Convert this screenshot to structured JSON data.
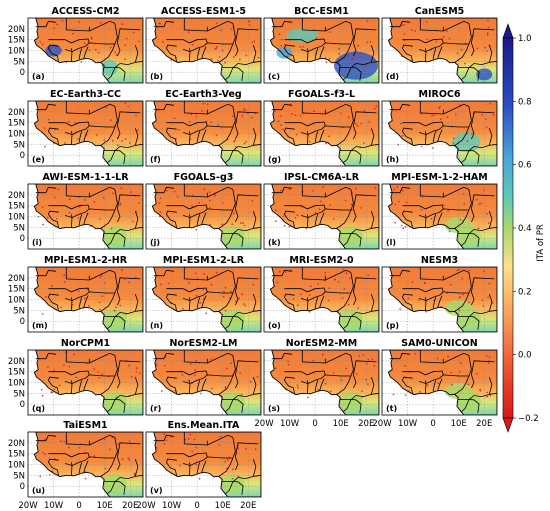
{
  "chart_data": {
    "type": "heatmap",
    "colorbar": {
      "label": "ITA of PR",
      "ticks": [
        "1.0",
        "0.8",
        "0.6",
        "0.4",
        "0.2",
        "0.0",
        "−0.2"
      ],
      "range": [
        -0.2,
        1.0
      ],
      "extend": "both",
      "colors": [
        "#d7191c",
        "#f46d43",
        "#fdae61",
        "#fee08b",
        "#a6d96a",
        "#5ec9b7",
        "#4aa8d8",
        "#2b4fc8",
        "#1a1a8c"
      ]
    },
    "x_ticks": [
      "20W",
      "10W",
      "0",
      "10E",
      "20E"
    ],
    "y_ticks": [
      "20N",
      "15N",
      "10N",
      "5N",
      "0"
    ],
    "region": "West Africa",
    "panels": [
      {
        "title": "ACCESS-CM2",
        "tag": "(a)"
      },
      {
        "title": "ACCESS-ESM1-5",
        "tag": "(b)"
      },
      {
        "title": "BCC-ESM1",
        "tag": "(c)"
      },
      {
        "title": "CanESM5",
        "tag": "(d)"
      },
      {
        "title": "EC-Earth3-CC",
        "tag": "(e)"
      },
      {
        "title": "EC-Earth3-Veg",
        "tag": "(f)"
      },
      {
        "title": "FGOALS-f3-L",
        "tag": "(g)"
      },
      {
        "title": "MIROC6",
        "tag": "(h)"
      },
      {
        "title": "AWI-ESM-1-1-LR",
        "tag": "(i)"
      },
      {
        "title": "FGOALS-g3",
        "tag": "(j)"
      },
      {
        "title": "IPSL-CM6A-LR",
        "tag": "(k)"
      },
      {
        "title": "MPI-ESM-1-2-HAM",
        "tag": "(l)"
      },
      {
        "title": "MPI-ESM1-2-HR",
        "tag": "(m)"
      },
      {
        "title": "MPI-ESM1-2-LR",
        "tag": "(n)"
      },
      {
        "title": "MRI-ESM2-0",
        "tag": "(o)"
      },
      {
        "title": "NESM3",
        "tag": "(p)"
      },
      {
        "title": "NorCPM1",
        "tag": "(q)"
      },
      {
        "title": "NorESM2-LM",
        "tag": "(r)"
      },
      {
        "title": "NorESM2-MM",
        "tag": "(s)"
      },
      {
        "title": "SAM0-UNICON",
        "tag": "(t)"
      },
      {
        "title": "TaiESM1",
        "tag": "(u)"
      },
      {
        "title": "Ens.Mean.ITA",
        "tag": "(v)"
      }
    ]
  }
}
